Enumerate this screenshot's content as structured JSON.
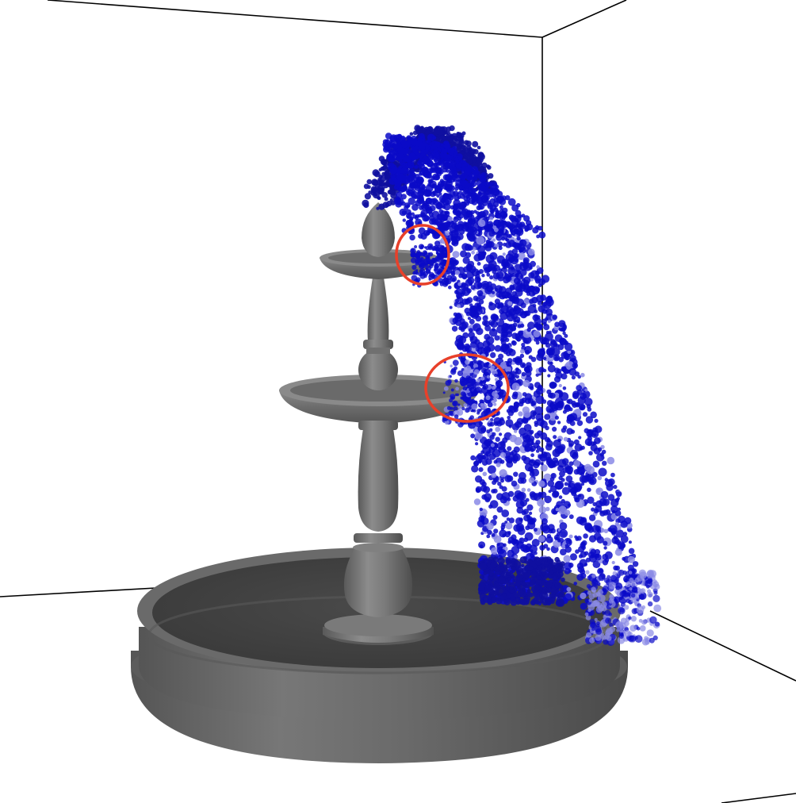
{
  "scene": {
    "background": "#ffffff",
    "frame_color": "#000000",
    "fountain": {
      "tiers": 2,
      "stone_color_light": "#8a8a8a",
      "stone_color_mid": "#6e6e6e",
      "stone_color_dark": "#4a4a4a",
      "basin_inner_color": "#3f3f3f"
    },
    "particles": {
      "color_core": "#0a0ac8",
      "color_dense": "#1010a0",
      "color_faint": "#8a8ae6"
    },
    "highlights": {
      "count": 2,
      "color": "#e8402a"
    }
  }
}
